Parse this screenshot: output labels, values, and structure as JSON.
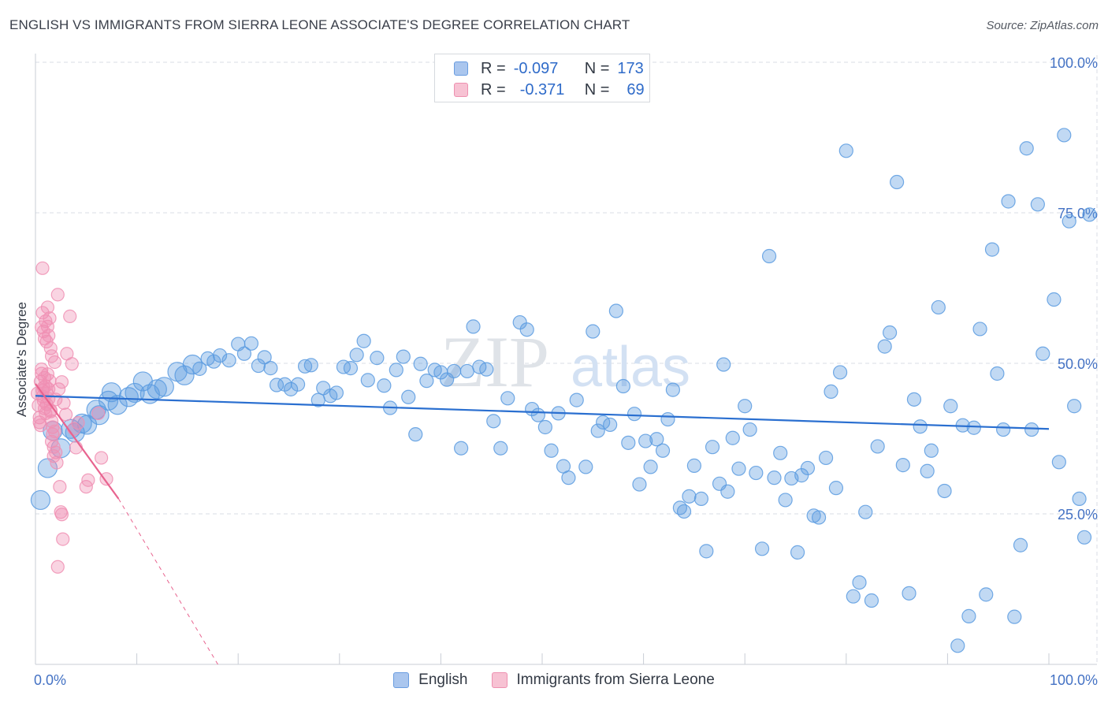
{
  "title": "ENGLISH VS IMMIGRANTS FROM SIERRA LEONE ASSOCIATE'S DEGREE CORRELATION CHART",
  "source": "Source: ZipAtlas.com",
  "watermark": {
    "zip": "ZIP",
    "atlas": "atlas"
  },
  "legend": {
    "r_label": "R =",
    "n_label": "N =",
    "rows": [
      {
        "r": "-0.097",
        "n": "173",
        "fill": "#aac6ee",
        "stroke": "#6a9de0"
      },
      {
        "r": "-0.371",
        "n": "69",
        "fill": "#f7c2d3",
        "stroke": "#ee90b0"
      }
    ]
  },
  "bottom_legend": {
    "english": "English",
    "sierra": "Immigrants from Sierra Leone"
  },
  "chart_data": {
    "type": "scatter",
    "title": "ENGLISH VS IMMIGRANTS FROM SIERRA LEONE ASSOCIATE'S DEGREE CORRELATION CHART",
    "xlabel": "",
    "ylabel": "Associate's Degree",
    "xlim": [
      0,
      100
    ],
    "ylim": [
      0,
      100
    ],
    "x_tick_labels": [
      "0.0%",
      "100.0%"
    ],
    "y_ticks": [
      25,
      50,
      75,
      100
    ],
    "y_tick_labels": [
      "25.0%",
      "50.0%",
      "75.0%",
      "100.0%"
    ],
    "grid": true,
    "colors": {
      "english": "#5b9be0",
      "sierra": "#f08fb3",
      "english_line": "#2a6fd0",
      "sierra_line": "#e8638f",
      "grid": "#d8dde4",
      "tick": "#4472c4"
    },
    "series": [
      {
        "name": "English",
        "r": -0.097,
        "n": 173,
        "trend": {
          "x0": 0,
          "y0": 44.6,
          "x1": 100,
          "y1": 39.1
        },
        "points": [
          [
            0.5,
            27.3
          ],
          [
            1.2,
            32.6
          ],
          [
            1.7,
            38.8
          ],
          [
            2.5,
            35.9
          ],
          [
            3.5,
            39.1
          ],
          [
            3.9,
            38.5
          ],
          [
            4.6,
            40.0
          ],
          [
            5.1,
            39.8
          ],
          [
            6.0,
            42.3
          ],
          [
            6.3,
            41.4
          ],
          [
            7.2,
            43.8
          ],
          [
            7.5,
            45.2
          ],
          [
            8.1,
            43.1
          ],
          [
            9.2,
            44.4
          ],
          [
            9.8,
            45.1
          ],
          [
            10.6,
            47.0
          ],
          [
            11.3,
            44.9
          ],
          [
            12.0,
            45.7
          ],
          [
            12.7,
            46.1
          ],
          [
            14.0,
            48.6
          ],
          [
            14.7,
            48.0
          ],
          [
            15.5,
            49.8
          ],
          [
            16.2,
            49.1
          ],
          [
            17.0,
            50.8
          ],
          [
            17.6,
            50.3
          ],
          [
            18.2,
            51.3
          ],
          [
            19.1,
            50.5
          ],
          [
            20.0,
            53.2
          ],
          [
            20.6,
            51.6
          ],
          [
            21.3,
            53.3
          ],
          [
            22.0,
            49.6
          ],
          [
            22.6,
            51.0
          ],
          [
            23.2,
            49.2
          ],
          [
            23.8,
            46.4
          ],
          [
            24.6,
            46.5
          ],
          [
            25.2,
            45.7
          ],
          [
            25.9,
            46.5
          ],
          [
            26.6,
            49.5
          ],
          [
            27.2,
            49.7
          ],
          [
            27.9,
            43.9
          ],
          [
            28.4,
            45.9
          ],
          [
            29.1,
            44.6
          ],
          [
            29.7,
            45.1
          ],
          [
            30.4,
            49.4
          ],
          [
            31.1,
            49.2
          ],
          [
            31.7,
            51.4
          ],
          [
            32.4,
            53.7
          ],
          [
            32.8,
            47.2
          ],
          [
            33.7,
            50.9
          ],
          [
            34.4,
            46.3
          ],
          [
            35.0,
            42.6
          ],
          [
            35.6,
            48.9
          ],
          [
            36.3,
            51.1
          ],
          [
            36.8,
            44.4
          ],
          [
            37.5,
            38.2
          ],
          [
            38.0,
            49.9
          ],
          [
            38.6,
            47.1
          ],
          [
            39.4,
            48.9
          ],
          [
            40.0,
            48.5
          ],
          [
            40.6,
            47.3
          ],
          [
            41.3,
            48.7
          ],
          [
            42.0,
            35.9
          ],
          [
            42.6,
            48.7
          ],
          [
            43.2,
            56.1
          ],
          [
            43.8,
            49.4
          ],
          [
            44.5,
            49.0
          ],
          [
            45.2,
            40.4
          ],
          [
            45.9,
            35.9
          ],
          [
            46.6,
            44.2
          ],
          [
            47.8,
            56.8
          ],
          [
            48.5,
            55.6
          ],
          [
            49.0,
            42.4
          ],
          [
            49.6,
            41.4
          ],
          [
            50.3,
            39.4
          ],
          [
            50.9,
            35.5
          ],
          [
            51.6,
            41.7
          ],
          [
            52.1,
            32.9
          ],
          [
            52.6,
            31.0
          ],
          [
            53.4,
            43.9
          ],
          [
            54.3,
            32.8
          ],
          [
            55.0,
            55.3
          ],
          [
            55.5,
            38.8
          ],
          [
            56.0,
            40.2
          ],
          [
            56.7,
            39.8
          ],
          [
            57.3,
            58.7
          ],
          [
            58.0,
            46.2
          ],
          [
            58.5,
            36.8
          ],
          [
            59.1,
            41.6
          ],
          [
            59.6,
            29.9
          ],
          [
            60.2,
            37.1
          ],
          [
            60.7,
            32.8
          ],
          [
            61.3,
            37.4
          ],
          [
            61.9,
            35.5
          ],
          [
            62.4,
            40.7
          ],
          [
            62.9,
            45.6
          ],
          [
            63.6,
            26.0
          ],
          [
            64.0,
            25.4
          ],
          [
            64.5,
            27.9
          ],
          [
            65.0,
            33.0
          ],
          [
            65.7,
            27.5
          ],
          [
            66.2,
            18.8
          ],
          [
            66.8,
            36.1
          ],
          [
            67.5,
            30.0
          ],
          [
            67.9,
            49.8
          ],
          [
            68.3,
            28.7
          ],
          [
            68.8,
            37.6
          ],
          [
            69.4,
            32.5
          ],
          [
            70.0,
            42.9
          ],
          [
            70.5,
            39.0
          ],
          [
            71.1,
            31.8
          ],
          [
            71.7,
            19.2
          ],
          [
            72.4,
            67.8
          ],
          [
            72.9,
            31.0
          ],
          [
            73.5,
            35.1
          ],
          [
            74.0,
            27.3
          ],
          [
            74.6,
            30.9
          ],
          [
            75.2,
            18.6
          ],
          [
            75.6,
            31.4
          ],
          [
            76.2,
            32.6
          ],
          [
            76.8,
            24.7
          ],
          [
            77.3,
            24.4
          ],
          [
            78.0,
            34.3
          ],
          [
            78.5,
            45.3
          ],
          [
            79.0,
            29.3
          ],
          [
            79.4,
            48.5
          ],
          [
            80.0,
            85.3
          ],
          [
            80.7,
            11.3
          ],
          [
            81.3,
            13.6
          ],
          [
            81.9,
            25.3
          ],
          [
            82.5,
            10.6
          ],
          [
            83.1,
            36.2
          ],
          [
            83.8,
            52.8
          ],
          [
            84.3,
            55.1
          ],
          [
            85.0,
            80.1
          ],
          [
            85.6,
            33.1
          ],
          [
            86.2,
            11.8
          ],
          [
            86.7,
            44.0
          ],
          [
            87.3,
            39.5
          ],
          [
            88.0,
            32.1
          ],
          [
            88.4,
            35.5
          ],
          [
            89.1,
            59.3
          ],
          [
            89.7,
            28.8
          ],
          [
            90.3,
            42.9
          ],
          [
            91.0,
            3.1
          ],
          [
            91.5,
            39.7
          ],
          [
            92.1,
            8.0
          ],
          [
            92.6,
            39.3
          ],
          [
            93.2,
            55.7
          ],
          [
            93.8,
            11.6
          ],
          [
            94.4,
            68.9
          ],
          [
            94.9,
            48.3
          ],
          [
            95.5,
            39.0
          ],
          [
            96.0,
            76.9
          ],
          [
            96.6,
            7.9
          ],
          [
            97.2,
            19.8
          ],
          [
            97.8,
            85.7
          ],
          [
            98.3,
            39.0
          ],
          [
            98.9,
            76.4
          ],
          [
            99.4,
            51.6
          ],
          [
            100.5,
            60.6
          ],
          [
            101.0,
            33.6
          ],
          [
            101.5,
            87.9
          ],
          [
            102.0,
            73.6
          ],
          [
            102.5,
            42.9
          ],
          [
            103.0,
            27.5
          ],
          [
            103.5,
            21.1
          ],
          [
            104.0,
            74.7
          ]
        ]
      },
      {
        "name": "Immigrants from Sierra Leone",
        "r": -0.371,
        "n": 69,
        "trend": {
          "x0": 0,
          "y0": 46.6,
          "x1": 8.2,
          "y1": 27.5
        },
        "trend_extended": {
          "x0": 8.2,
          "y0": 27.5,
          "x1": 18.0,
          "y1": 0
        },
        "points": [
          [
            0.2,
            45.0
          ],
          [
            0.3,
            43.0
          ],
          [
            0.4,
            41.0
          ],
          [
            0.5,
            47.0
          ],
          [
            0.6,
            49.0
          ],
          [
            0.7,
            44.5
          ],
          [
            0.8,
            46.0
          ],
          [
            0.9,
            42.5
          ],
          [
            0.4,
            40.2
          ],
          [
            0.6,
            48.3
          ],
          [
            0.7,
            45.5
          ],
          [
            0.8,
            43.8
          ],
          [
            0.9,
            47.6
          ],
          [
            1.0,
            46.2
          ],
          [
            1.1,
            45.0
          ],
          [
            1.2,
            48.2
          ],
          [
            1.3,
            44.1
          ],
          [
            1.0,
            41.7
          ],
          [
            1.1,
            43.2
          ],
          [
            0.5,
            39.7
          ],
          [
            0.6,
            56.0
          ],
          [
            0.7,
            58.4
          ],
          [
            0.8,
            55.3
          ],
          [
            0.9,
            54.1
          ],
          [
            1.0,
            57.0
          ],
          [
            1.1,
            53.6
          ],
          [
            1.2,
            56.1
          ],
          [
            1.3,
            54.6
          ],
          [
            1.4,
            57.5
          ],
          [
            1.5,
            52.5
          ],
          [
            1.6,
            51.2
          ],
          [
            0.7,
            65.8
          ],
          [
            1.2,
            59.3
          ],
          [
            1.3,
            45.7
          ],
          [
            1.4,
            47.1
          ],
          [
            1.5,
            42.2
          ],
          [
            1.6,
            40.4
          ],
          [
            1.7,
            39.4
          ],
          [
            1.8,
            36.1
          ],
          [
            1.9,
            38.7
          ],
          [
            2.0,
            35.2
          ],
          [
            2.1,
            33.5
          ],
          [
            2.2,
            61.4
          ],
          [
            2.3,
            45.7
          ],
          [
            2.4,
            29.5
          ],
          [
            2.5,
            25.3
          ],
          [
            2.6,
            24.9
          ],
          [
            2.7,
            20.8
          ],
          [
            2.2,
            16.2
          ],
          [
            1.6,
            37.0
          ],
          [
            1.7,
            38.2
          ],
          [
            1.8,
            34.6
          ],
          [
            3.1,
            51.6
          ],
          [
            3.4,
            57.8
          ],
          [
            3.6,
            49.9
          ],
          [
            3.8,
            39.1
          ],
          [
            4.0,
            36.0
          ],
          [
            4.2,
            40.1
          ],
          [
            2.8,
            43.4
          ],
          [
            3.0,
            41.5
          ],
          [
            5.0,
            29.5
          ],
          [
            5.2,
            30.6
          ],
          [
            6.2,
            41.7
          ],
          [
            6.5,
            34.3
          ],
          [
            7.0,
            30.8
          ],
          [
            2.6,
            46.9
          ],
          [
            1.9,
            50.2
          ],
          [
            2.0,
            44.0
          ],
          [
            1.5,
            42.0
          ]
        ]
      }
    ]
  }
}
